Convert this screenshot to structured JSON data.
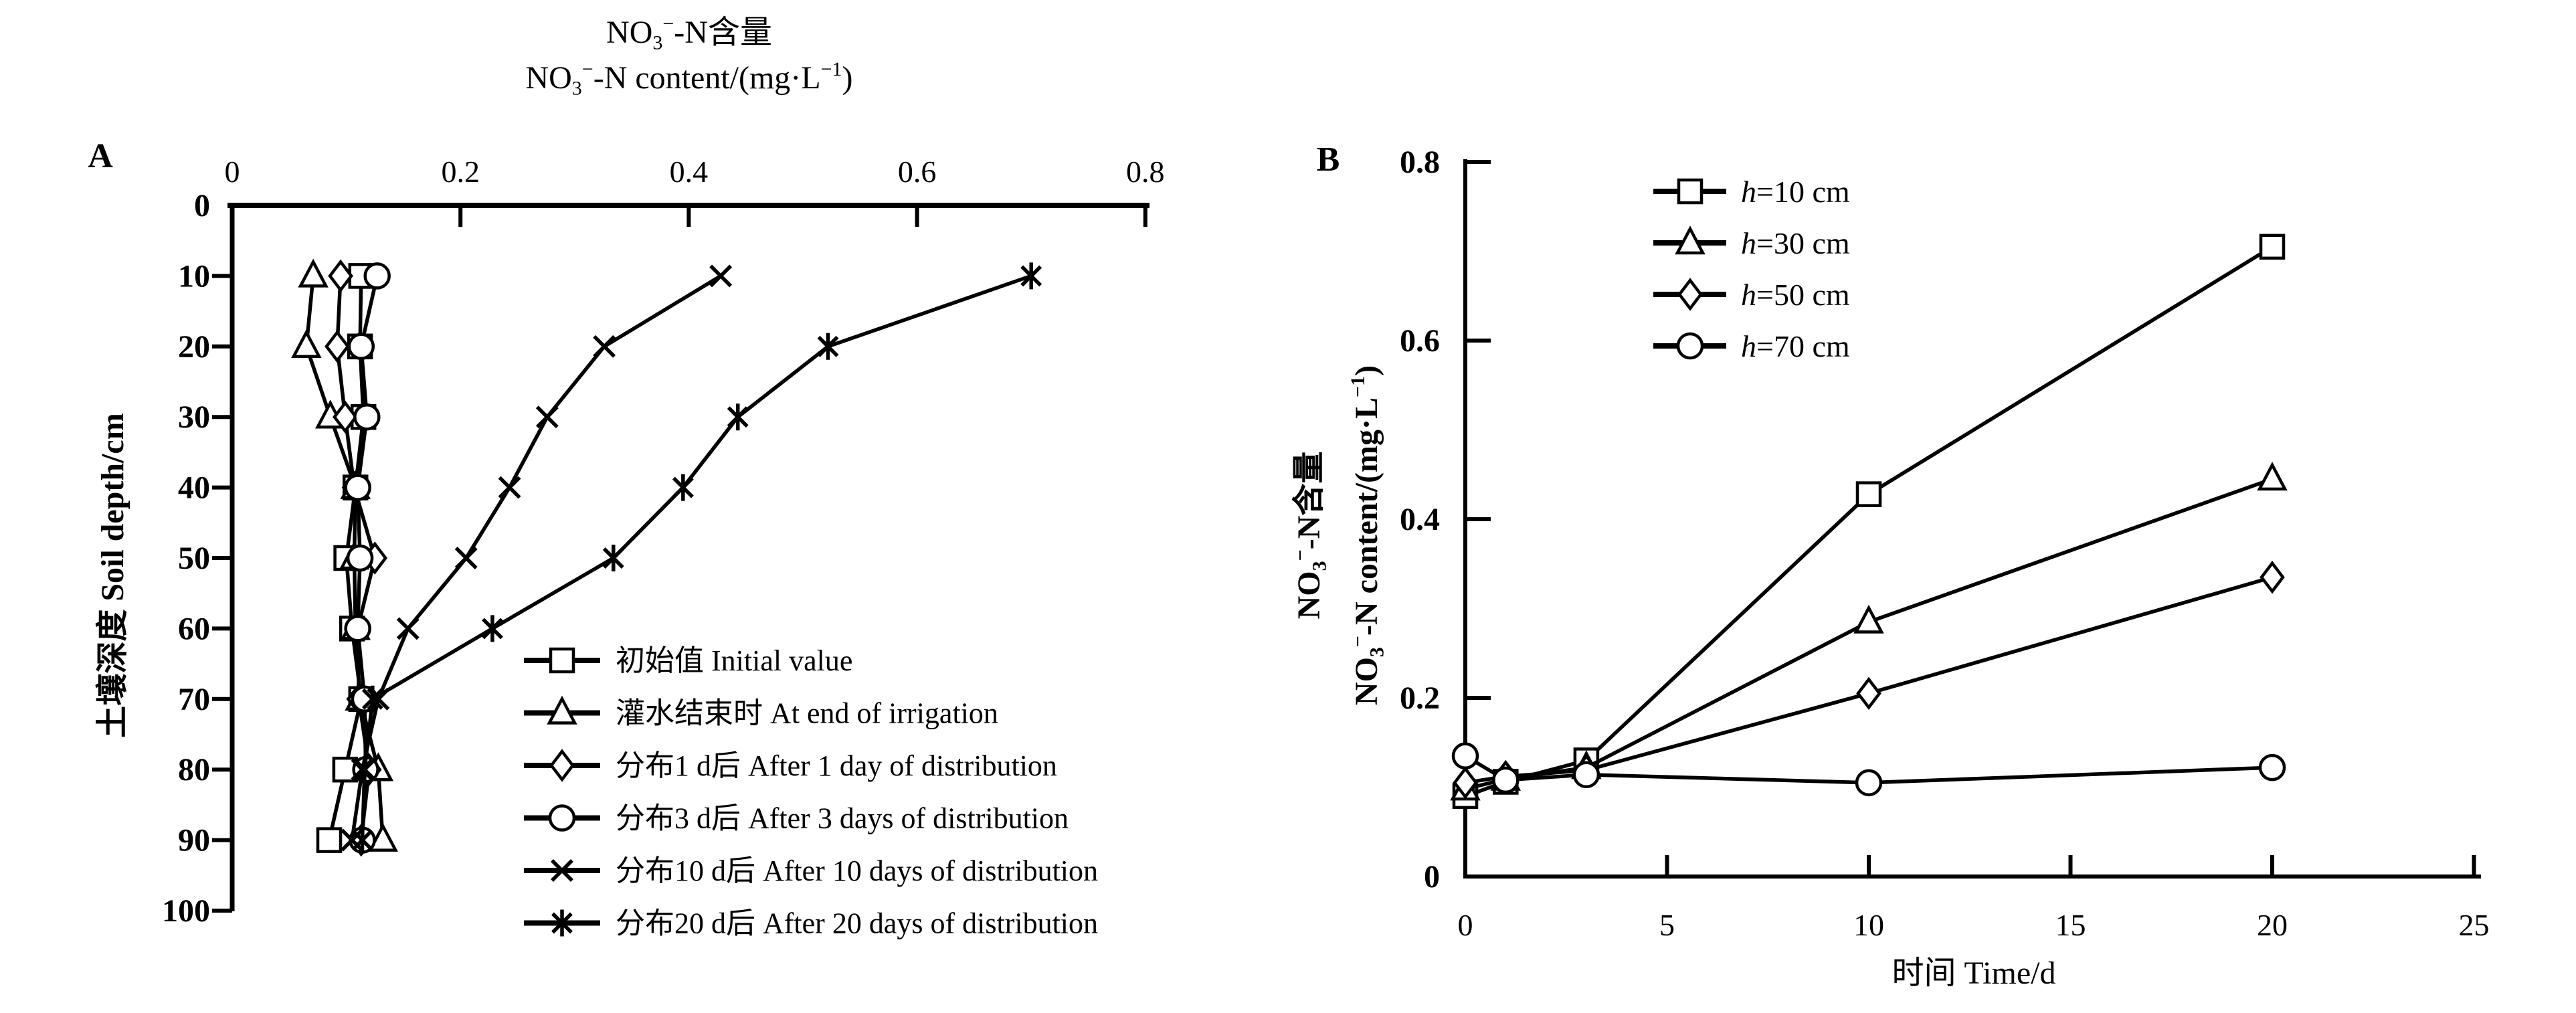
{
  "page": {
    "background": "#ffffff",
    "ink": "#000000"
  },
  "chart_data": [
    {
      "panel_label": "A",
      "type": "line",
      "title_cn_parts": [
        [
          "NO"
        ],
        [
          "3",
          "sub"
        ],
        [
          "−",
          "sup"
        ],
        [
          "-N含量"
        ]
      ],
      "title_en_parts": [
        [
          "NO"
        ],
        [
          "3",
          "sub"
        ],
        [
          "−",
          "sup"
        ],
        [
          "-N content/(mg·L"
        ],
        [
          "−1",
          "sup"
        ],
        [
          ")"
        ]
      ],
      "title_plain": "NO3−-N含量 NO3−-N content/(mg·L−1)",
      "xlabel": "NO3−-N content/(mg·L−1)",
      "ylabel": "土壤深度 Soil depth/cm",
      "x_axis_position": "top",
      "y_inverted": true,
      "grid": false,
      "legend_position": "inside-lower-right",
      "xlim": [
        0,
        0.8
      ],
      "x_ticks": [
        0,
        0.2,
        0.4,
        0.6,
        0.8
      ],
      "ylim": [
        0,
        100
      ],
      "y_ticks": [
        0,
        10,
        20,
        30,
        40,
        50,
        60,
        70,
        80,
        90,
        100
      ],
      "depths_cm": [
        10,
        20,
        30,
        40,
        50,
        60,
        70,
        80,
        90
      ],
      "series": [
        {
          "name": "初始值 Initial value",
          "marker": "square",
          "values": [
            0.113,
            0.112,
            0.115,
            0.108,
            0.1,
            0.105,
            0.113,
            0.099,
            0.085
          ]
        },
        {
          "name": "灌水结束时 At end of irrigation",
          "marker": "triangle",
          "values": [
            0.071,
            0.065,
            0.086,
            0.108,
            0.107,
            0.108,
            0.112,
            0.128,
            0.132
          ]
        },
        {
          "name": "分布1 d后 After 1 day of distribution",
          "marker": "diamond",
          "values": [
            0.095,
            0.092,
            0.099,
            0.107,
            0.125,
            0.11,
            0.111,
            0.12,
            0.113
          ]
        },
        {
          "name": "分布3 d后 After 3 days of distribution",
          "marker": "circle",
          "values": [
            0.127,
            0.113,
            0.118,
            0.11,
            0.112,
            0.11,
            0.116,
            0.117,
            0.114
          ]
        },
        {
          "name": "分布10 d后 After 10 days of distribution",
          "marker": "x",
          "values": [
            0.428,
            0.326,
            0.276,
            0.243,
            0.205,
            0.154,
            0.128,
            0.114,
            0.105
          ]
        },
        {
          "name": "分布20 d后 After 20 days of distribution",
          "marker": "asterisk",
          "values": [
            0.7,
            0.522,
            0.443,
            0.395,
            0.334,
            0.228,
            0.123,
            0.116,
            0.114
          ]
        }
      ]
    },
    {
      "panel_label": "B",
      "type": "line",
      "ylabel_cn_parts": [
        [
          "NO"
        ],
        [
          "3",
          "sub"
        ],
        [
          "−",
          "sup"
        ],
        [
          "-N含量"
        ]
      ],
      "ylabel_en_parts": [
        [
          "NO"
        ],
        [
          "3",
          "sub"
        ],
        [
          "−",
          "sup"
        ],
        [
          "-N content/(mg·L"
        ],
        [
          "−1",
          "sup"
        ],
        [
          ")"
        ]
      ],
      "ylabel_plain": "NO3−-N含量 NO3−-N content/(mg·L−1)",
      "xlabel": "时间 Time/d",
      "grid": false,
      "legend_position": "inside-top",
      "xlim": [
        0,
        25
      ],
      "x_ticks": [
        0,
        5,
        10,
        15,
        20,
        25
      ],
      "ylim": [
        0,
        0.8
      ],
      "y_ticks": [
        0,
        0.2,
        0.4,
        0.6,
        0.8
      ],
      "x": [
        0,
        1,
        3,
        10,
        20
      ],
      "series": [
        {
          "name_var": "h",
          "name_rest": "=10 cm",
          "marker": "square",
          "values": [
            0.09,
            0.106,
            0.13,
            0.428,
            0.705
          ]
        },
        {
          "name_var": "h",
          "name_rest": "=30 cm",
          "marker": "triangle",
          "values": [
            0.098,
            0.109,
            0.122,
            0.285,
            0.445
          ]
        },
        {
          "name_var": "h",
          "name_rest": "=50 cm",
          "marker": "diamond",
          "values": [
            0.105,
            0.112,
            0.119,
            0.205,
            0.335
          ]
        },
        {
          "name_var": "h",
          "name_rest": "=70 cm",
          "marker": "circle",
          "values": [
            0.135,
            0.108,
            0.114,
            0.105,
            0.122
          ]
        }
      ]
    }
  ]
}
